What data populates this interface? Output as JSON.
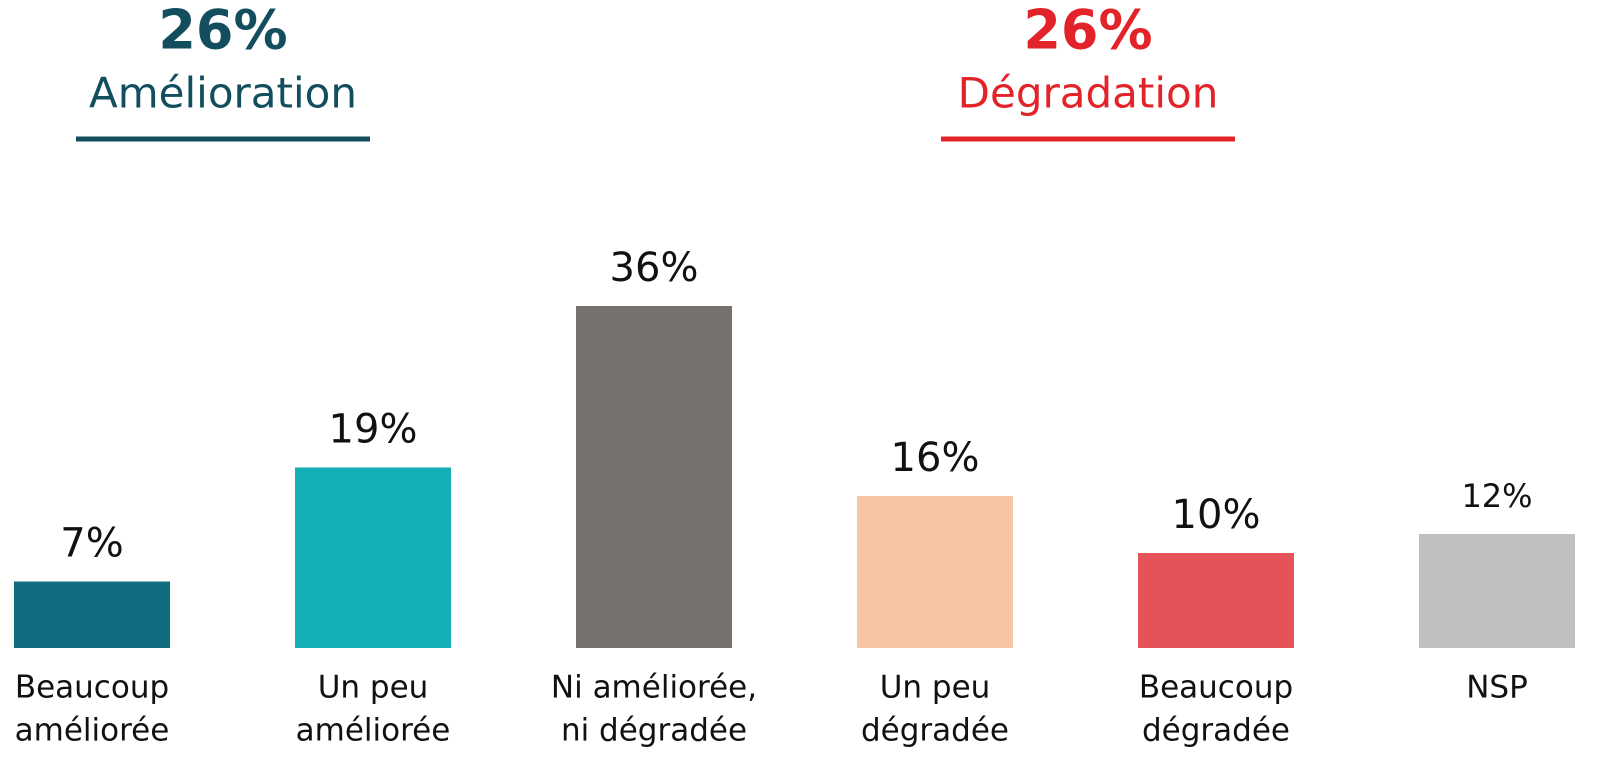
{
  "chart_data": {
    "type": "bar",
    "summary": [
      {
        "value": 26,
        "value_label": "26%",
        "label": "Amélioration",
        "color": "#134e5e"
      },
      {
        "value": 26,
        "value_label": "26%",
        "label": "Dégradation",
        "color": "#e3232a"
      }
    ],
    "categories": [
      [
        "Beaucoup",
        "améliorée"
      ],
      [
        "Un peu",
        "améliorée"
      ],
      [
        "Ni améliorée,",
        "ni dégradée"
      ],
      [
        "Un peu",
        "dégradée"
      ],
      [
        "Beaucoup",
        "dégradée"
      ],
      [
        "NSP"
      ]
    ],
    "values": [
      7,
      19,
      36,
      16,
      10,
      12
    ],
    "value_labels": [
      "7%",
      "19%",
      "36%",
      "16%",
      "10%",
      "12%"
    ],
    "colors": [
      "#136b80",
      "#14afb6",
      "#75716f",
      "#f7c4a4",
      "#e5535a",
      "#bfbfbf"
    ],
    "ylim": [
      0,
      40
    ]
  }
}
